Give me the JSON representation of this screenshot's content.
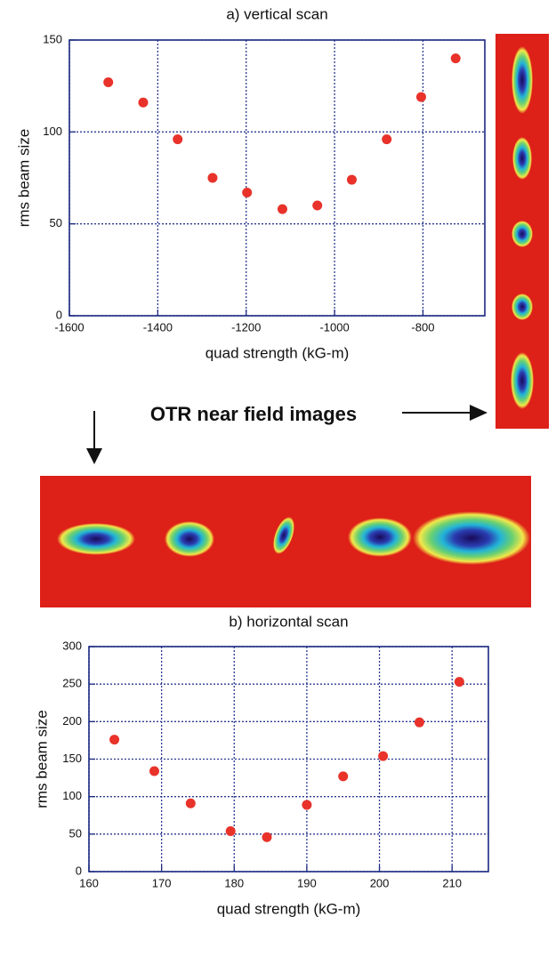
{
  "annotation": "OTR near field images",
  "chart_data": [
    {
      "type": "scatter",
      "title": "a) vertical scan",
      "x_label": "quad strength (kG-m)",
      "y_label": "rms beam size",
      "x": [
        -1512,
        -1433,
        -1355,
        -1276,
        -1198,
        -1118,
        -1039,
        -961,
        -882,
        -804,
        -726
      ],
      "values": [
        127,
        116,
        96,
        75,
        67,
        58,
        60,
        74,
        96,
        119,
        140
      ],
      "color": "#e8322a",
      "xlim": [
        -1600,
        -660
      ],
      "xticks": [
        -1600,
        -1400,
        -1200,
        -1000,
        -800
      ],
      "ylim": [
        0,
        150
      ],
      "yticks": [
        0,
        50,
        100,
        150
      ],
      "grid": true
    },
    {
      "type": "scatter",
      "title": "b) horizontal scan",
      "x_label": "quad strength (kG-m)",
      "y_label": "rms beam size",
      "x": [
        163.5,
        169,
        174,
        179.5,
        184.5,
        190,
        195,
        200.5,
        205.5,
        211
      ],
      "values": [
        176,
        134,
        91,
        54,
        46,
        89,
        127,
        154,
        199,
        253
      ],
      "color": "#e8322a",
      "xlim": [
        160,
        215
      ],
      "xticks": [
        160,
        170,
        180,
        190,
        200,
        210
      ],
      "ylim": [
        0,
        300
      ],
      "yticks": [
        0,
        50,
        100,
        150,
        200,
        250,
        300
      ],
      "grid": true
    }
  ]
}
